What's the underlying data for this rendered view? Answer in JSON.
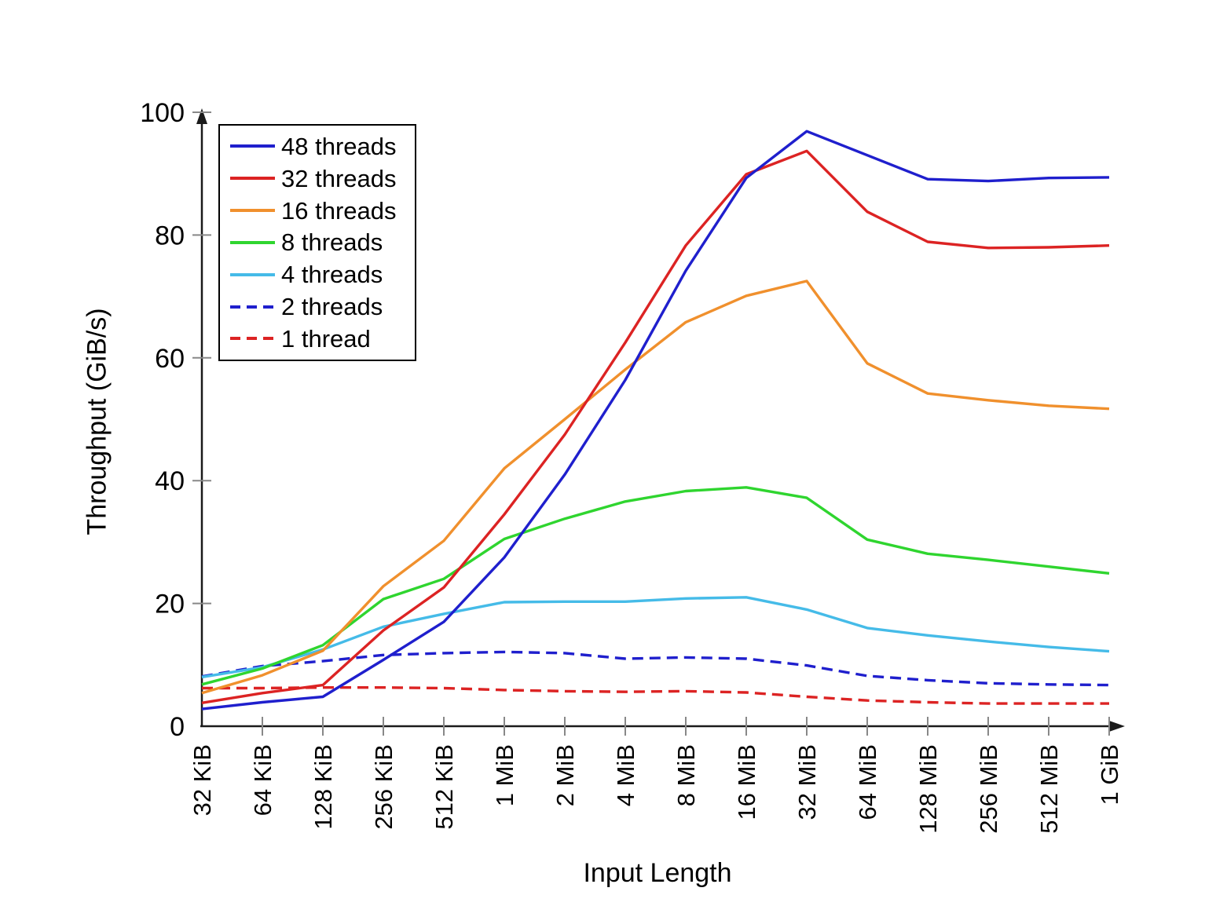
{
  "chart_data": {
    "type": "line",
    "title": "",
    "xlabel": "Input Length",
    "ylabel": "Throughput (GiB/s)",
    "x_categories": [
      "32 KiB",
      "64 KiB",
      "128 KiB",
      "256 KiB",
      "512 KiB",
      "1 MiB",
      "2 MiB",
      "4 MiB",
      "8 MiB",
      "16 MiB",
      "32 MiB",
      "64 MiB",
      "128 MiB",
      "256 MiB",
      "512 MiB",
      "1 GiB"
    ],
    "y_ticks": [
      0,
      20,
      40,
      60,
      80,
      100
    ],
    "ylim": [
      0,
      100
    ],
    "grid": false,
    "legend_position": "top-left",
    "series": [
      {
        "name": "48 threads",
        "color": "#1f1fcd",
        "dashed": false,
        "values": [
          2.8,
          3.9,
          4.8,
          10.8,
          17.0,
          27.5,
          41.0,
          56.4,
          74.2,
          89.3,
          96.9,
          93.0,
          89.1,
          88.8,
          89.3,
          89.4
        ]
      },
      {
        "name": "32 threads",
        "color": "#dc2323",
        "dashed": false,
        "values": [
          3.8,
          5.4,
          6.7,
          15.6,
          22.6,
          34.5,
          47.5,
          62.5,
          78.3,
          89.9,
          93.7,
          83.8,
          78.9,
          77.9,
          78.0,
          78.3
        ]
      },
      {
        "name": "16 threads",
        "color": "#f0902d",
        "dashed": false,
        "values": [
          5.4,
          8.3,
          12.3,
          22.8,
          30.2,
          42.0,
          50.0,
          58.1,
          65.8,
          70.1,
          72.5,
          59.1,
          54.2,
          53.1,
          52.2,
          51.7
        ]
      },
      {
        "name": "8 threads",
        "color": "#2fd52f",
        "dashed": false,
        "values": [
          6.8,
          9.4,
          13.2,
          20.7,
          24.0,
          30.5,
          33.8,
          36.6,
          38.3,
          38.9,
          37.2,
          30.4,
          28.1,
          27.1,
          26.0,
          24.9
        ]
      },
      {
        "name": "4 threads",
        "color": "#45bbe8",
        "dashed": false,
        "values": [
          8.0,
          9.6,
          12.5,
          16.2,
          18.3,
          20.2,
          20.3,
          20.3,
          20.8,
          21.0,
          19.0,
          16.0,
          14.8,
          13.8,
          12.9,
          12.2
        ]
      },
      {
        "name": "2 threads",
        "color": "#1f1fcd",
        "dashed": true,
        "values": [
          8.1,
          9.8,
          10.6,
          11.6,
          11.9,
          12.1,
          11.9,
          11.0,
          11.2,
          11.0,
          9.9,
          8.2,
          7.5,
          7.0,
          6.8,
          6.7
        ]
      },
      {
        "name": "1 thread",
        "color": "#dc2323",
        "dashed": true,
        "values": [
          6.2,
          6.2,
          6.3,
          6.3,
          6.2,
          5.9,
          5.7,
          5.6,
          5.7,
          5.5,
          4.8,
          4.2,
          3.9,
          3.7,
          3.7,
          3.7
        ]
      }
    ],
    "colors": {
      "axis": "#1a1a1a",
      "tick": "#888888",
      "text": "#000000",
      "background": "#ffffff"
    }
  }
}
